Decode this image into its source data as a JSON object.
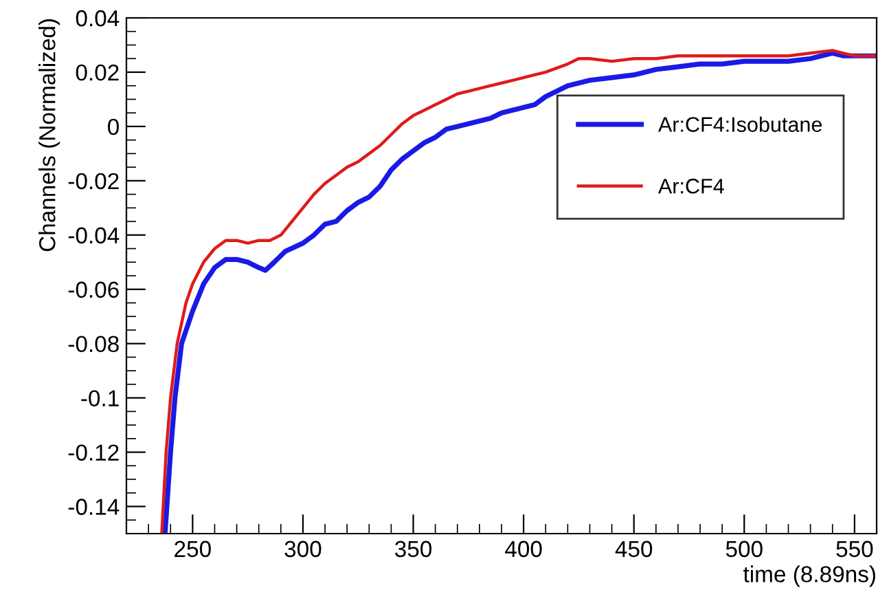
{
  "chart_data": {
    "type": "line",
    "xlabel": "time (8.89ns)",
    "ylabel": "Channels (Normalized)",
    "xlim": [
      220,
      560
    ],
    "ylim": [
      -0.15,
      0.04
    ],
    "xticks": [
      250,
      300,
      350,
      400,
      450,
      500,
      550
    ],
    "yticks": [
      -0.14,
      -0.12,
      -0.1,
      -0.08,
      -0.06,
      -0.04,
      -0.02,
      0,
      0.02,
      0.04
    ],
    "grid": false,
    "legend": "right",
    "marker": "none",
    "line_style": "solid",
    "series": [
      {
        "name": "Ar:CF4:Isobutane",
        "color": "#1a1ae6",
        "x": [
          237.5,
          240,
          242,
          245,
          250,
          255,
          260,
          265,
          270,
          275,
          280,
          283,
          287,
          292,
          300,
          305,
          310,
          315,
          320,
          325,
          330,
          335,
          340,
          345,
          350,
          355,
          360,
          365,
          370,
          375,
          380,
          385,
          390,
          395,
          400,
          405,
          410,
          420,
          430,
          440,
          450,
          460,
          470,
          480,
          490,
          500,
          510,
          520,
          530,
          540,
          545,
          550,
          560
        ],
        "values": [
          -0.15,
          -0.12,
          -0.1,
          -0.08,
          -0.068,
          -0.058,
          -0.052,
          -0.049,
          -0.049,
          -0.05,
          -0.052,
          -0.053,
          -0.05,
          -0.046,
          -0.043,
          -0.04,
          -0.036,
          -0.035,
          -0.031,
          -0.028,
          -0.026,
          -0.022,
          -0.016,
          -0.012,
          -0.009,
          -0.006,
          -0.004,
          -0.001,
          0.0,
          0.001,
          0.002,
          0.003,
          0.005,
          0.006,
          0.007,
          0.008,
          0.011,
          0.015,
          0.017,
          0.018,
          0.019,
          0.021,
          0.022,
          0.023,
          0.023,
          0.024,
          0.024,
          0.024,
          0.025,
          0.027,
          0.026,
          0.026,
          0.026
        ]
      },
      {
        "name": "Ar:CF4",
        "color": "#e01a1a",
        "x": [
          236,
          238,
          240,
          243,
          247,
          250,
          255,
          260,
          265,
          270,
          275,
          280,
          285,
          290,
          295,
          300,
          305,
          310,
          315,
          320,
          325,
          330,
          335,
          340,
          345,
          350,
          355,
          360,
          365,
          370,
          375,
          380,
          385,
          390,
          395,
          400,
          410,
          420,
          425,
          430,
          440,
          450,
          460,
          470,
          480,
          490,
          500,
          510,
          520,
          530,
          540,
          545,
          550,
          560
        ],
        "values": [
          -0.15,
          -0.12,
          -0.1,
          -0.08,
          -0.065,
          -0.058,
          -0.05,
          -0.045,
          -0.042,
          -0.042,
          -0.043,
          -0.042,
          -0.042,
          -0.04,
          -0.035,
          -0.03,
          -0.025,
          -0.021,
          -0.018,
          -0.015,
          -0.013,
          -0.01,
          -0.007,
          -0.003,
          0.001,
          0.004,
          0.006,
          0.008,
          0.01,
          0.012,
          0.013,
          0.014,
          0.015,
          0.016,
          0.017,
          0.018,
          0.02,
          0.023,
          0.025,
          0.025,
          0.024,
          0.025,
          0.025,
          0.026,
          0.026,
          0.026,
          0.026,
          0.026,
          0.026,
          0.027,
          0.028,
          0.027,
          0.026,
          0.026
        ]
      }
    ]
  }
}
